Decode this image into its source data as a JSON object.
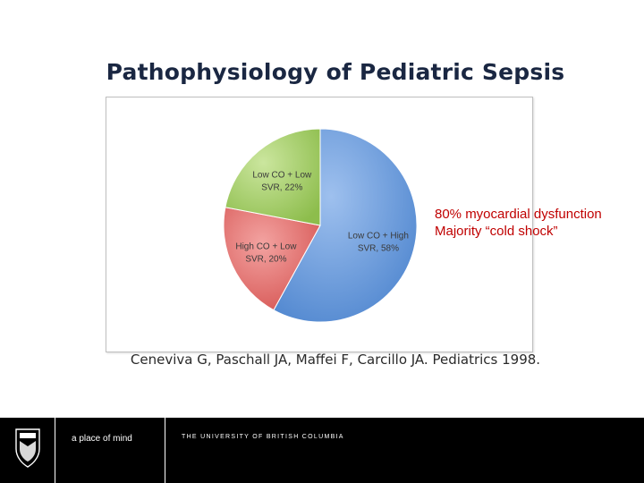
{
  "slide": {
    "title": "Pathophysiology of Pediatric Sepsis",
    "annotation": [
      "80% myocardial dysfunction",
      "Majority “cold shock”"
    ],
    "citation": "Ceneviva G, Paschall JA, Maffei F, Carcillo JA. Pediatrics 1998."
  },
  "chart_data": {
    "type": "pie",
    "title": "",
    "slices": [
      {
        "label_lines": [
          "Low CO + High",
          "SVR, 58%"
        ],
        "value": 58,
        "color": "#6a9bd8"
      },
      {
        "label_lines": [
          "High CO + Low",
          "SVR, 20%"
        ],
        "value": 20,
        "color": "#e0706f"
      },
      {
        "label_lines": [
          "Low CO + Low",
          "SVR, 22%"
        ],
        "value": 22,
        "color": "#a8cf6a"
      }
    ],
    "legend": "none"
  },
  "footer": {
    "logo_text": "UBC",
    "tagline": "a place of mind",
    "university": "THE UNIVERSITY OF BRITISH COLUMBIA"
  }
}
